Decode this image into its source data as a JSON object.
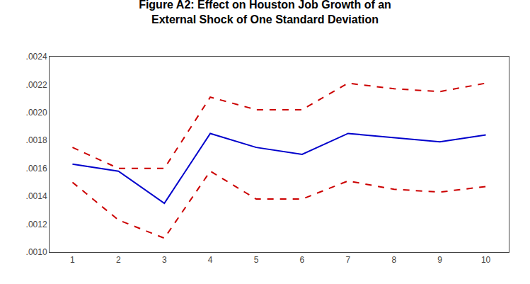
{
  "chart_data": {
    "type": "line",
    "title": "Figure A2: Effect on Houston Job Growth of an\nExternal Shock of One Standard Deviation",
    "x": [
      1,
      2,
      3,
      4,
      5,
      6,
      7,
      8,
      9,
      10
    ],
    "series": [
      {
        "color": "#0000cc",
        "line_style": "solid",
        "values": [
          0.00163,
          0.00158,
          0.00135,
          0.00185,
          0.00175,
          0.0017,
          0.00185,
          0.00182,
          0.00179,
          0.00184
        ]
      },
      {
        "color": "#cc0000",
        "line_style": "dashed",
        "values": [
          0.00175,
          0.0016,
          0.0016,
          0.00211,
          0.00202,
          0.00202,
          0.00221,
          0.00217,
          0.00215,
          0.00221
        ]
      },
      {
        "color": "#cc0000",
        "line_style": "dashed",
        "values": [
          0.0015,
          0.00123,
          0.0011,
          0.00158,
          0.00138,
          0.00138,
          0.00151,
          0.00145,
          0.00143,
          0.00147
        ]
      }
    ],
    "xlim": [
      0.5,
      10.5
    ],
    "xticks": [
      1,
      2,
      3,
      4,
      5,
      6,
      7,
      8,
      9,
      10
    ],
    "ylim": [
      0.001,
      0.0024
    ],
    "yticks": [
      {
        "value": 0.001,
        "label": ".0010"
      },
      {
        "value": 0.0012,
        "label": ".0012"
      },
      {
        "value": 0.0014,
        "label": ".0014"
      },
      {
        "value": 0.0016,
        "label": ".0016"
      },
      {
        "value": 0.0018,
        "label": ".0018"
      },
      {
        "value": 0.002,
        "label": ".0020"
      },
      {
        "value": 0.0022,
        "label": ".0022"
      },
      {
        "value": 0.0024,
        "label": ".0024"
      }
    ],
    "grid": false
  }
}
